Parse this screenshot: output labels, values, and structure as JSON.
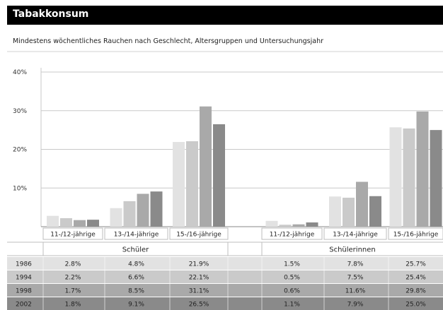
{
  "header": {
    "title": "Tabakkonsum",
    "subtitle": "Mindestens wöchentliches Rauchen nach Geschlecht, Altersgruppen und Untersuchungsjahr"
  },
  "colors": {
    "1986": "#e2e2e2",
    "1994": "#cacaca",
    "1998": "#a9a9a9",
    "2002": "#8a8a8a"
  },
  "chart_data": {
    "type": "bar",
    "title": "Tabakkonsum",
    "subtitle": "Mindestens wöchentliches Rauchen nach Geschlecht, Altersgruppen und Untersuchungsjahr",
    "ylim": [
      0,
      40
    ],
    "yticks": [
      "40%",
      "30%",
      "20%",
      "10%"
    ],
    "yticks_values": [
      40,
      30,
      20,
      10
    ],
    "grid": true,
    "groups": [
      {
        "name": "Schüler",
        "categories": [
          "11-/12-jährige",
          "13-/14-jährige",
          "15-/16-jährige"
        ]
      },
      {
        "name": "Schülerinnen",
        "categories": [
          "11-/12-jährige",
          "13-/14-jährige",
          "15-/16-jährige"
        ]
      }
    ],
    "series": [
      {
        "name": "1986",
        "values": [
          2.8,
          4.8,
          21.9,
          1.5,
          7.8,
          25.7
        ],
        "labels": [
          "2.8%",
          "4.8%",
          "21.9%",
          "1.5%",
          "7.8%",
          "25.7%"
        ]
      },
      {
        "name": "1994",
        "values": [
          2.2,
          6.6,
          22.1,
          0.5,
          7.5,
          25.4
        ],
        "labels": [
          "2.2%",
          "6.6%",
          "22.1%",
          "0.5%",
          "7.5%",
          "25.4%"
        ]
      },
      {
        "name": "1998",
        "values": [
          1.7,
          8.5,
          31.1,
          0.6,
          11.6,
          29.8
        ],
        "labels": [
          "1.7%",
          "8.5%",
          "31.1%",
          "0.6%",
          "11.6%",
          "29.8%"
        ]
      },
      {
        "name": "2002",
        "values": [
          1.8,
          9.1,
          26.5,
          1.1,
          7.9,
          25.0
        ],
        "labels": [
          "1.8%",
          "9.1%",
          "26.5%",
          "1.1%",
          "7.9%",
          "25.0%"
        ]
      }
    ]
  }
}
